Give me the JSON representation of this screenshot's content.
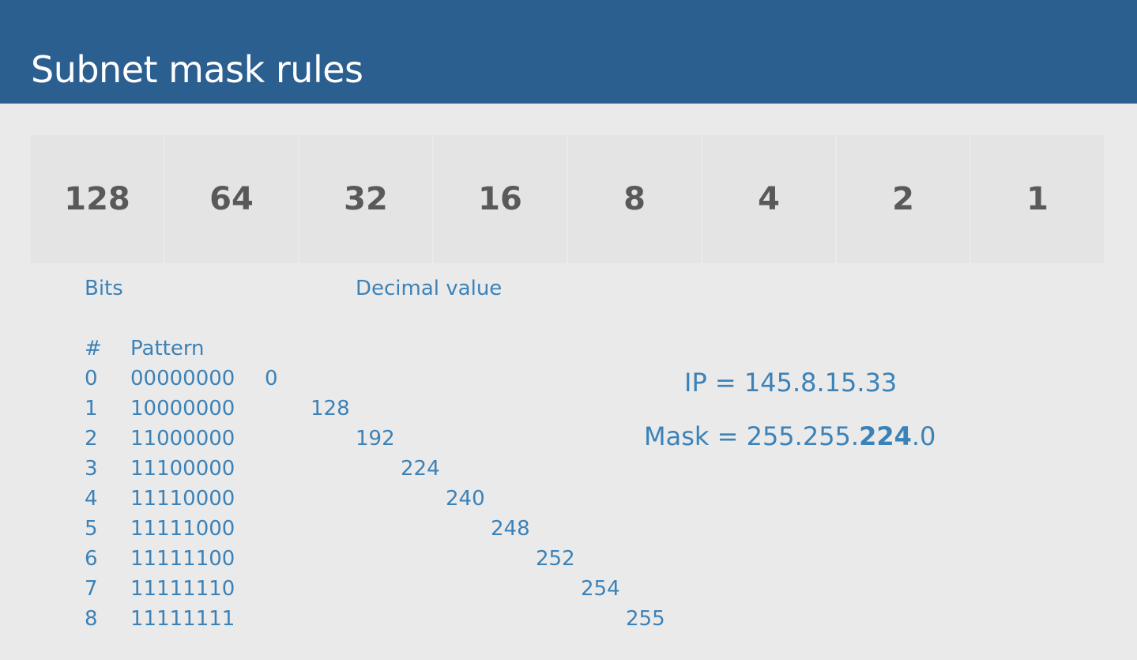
{
  "title": "Subnet mask rules",
  "bit_values": [
    "128",
    "64",
    "32",
    "16",
    "8",
    "4",
    "2",
    "1"
  ],
  "labels": {
    "bits": "Bits",
    "decimal_value": "Decimal value"
  },
  "table": {
    "header_num": "#",
    "header_pattern": "Pattern",
    "rows": [
      {
        "num": "0",
        "pattern": "00000000",
        "decimal": "0"
      },
      {
        "num": "1",
        "pattern": "10000000",
        "decimal": "128"
      },
      {
        "num": "2",
        "pattern": "11000000",
        "decimal": "192"
      },
      {
        "num": "3",
        "pattern": "11100000",
        "decimal": "224"
      },
      {
        "num": "4",
        "pattern": "11110000",
        "decimal": "240"
      },
      {
        "num": "5",
        "pattern": "11111000",
        "decimal": "248"
      },
      {
        "num": "6",
        "pattern": "11111100",
        "decimal": "252"
      },
      {
        "num": "7",
        "pattern": "11111110",
        "decimal": "254"
      },
      {
        "num": "8",
        "pattern": "11111111",
        "decimal": "255"
      }
    ]
  },
  "ip": {
    "ip_text": "IP = 145.8.15.33",
    "mask_prefix": "Mask = 255.255.",
    "mask_highlight": "224",
    "mask_suffix": ".0"
  },
  "colors": {
    "header": "#2b5f90",
    "accent_text": "#3b82b8",
    "bit_text": "#595959",
    "background": "#ebeaea"
  }
}
